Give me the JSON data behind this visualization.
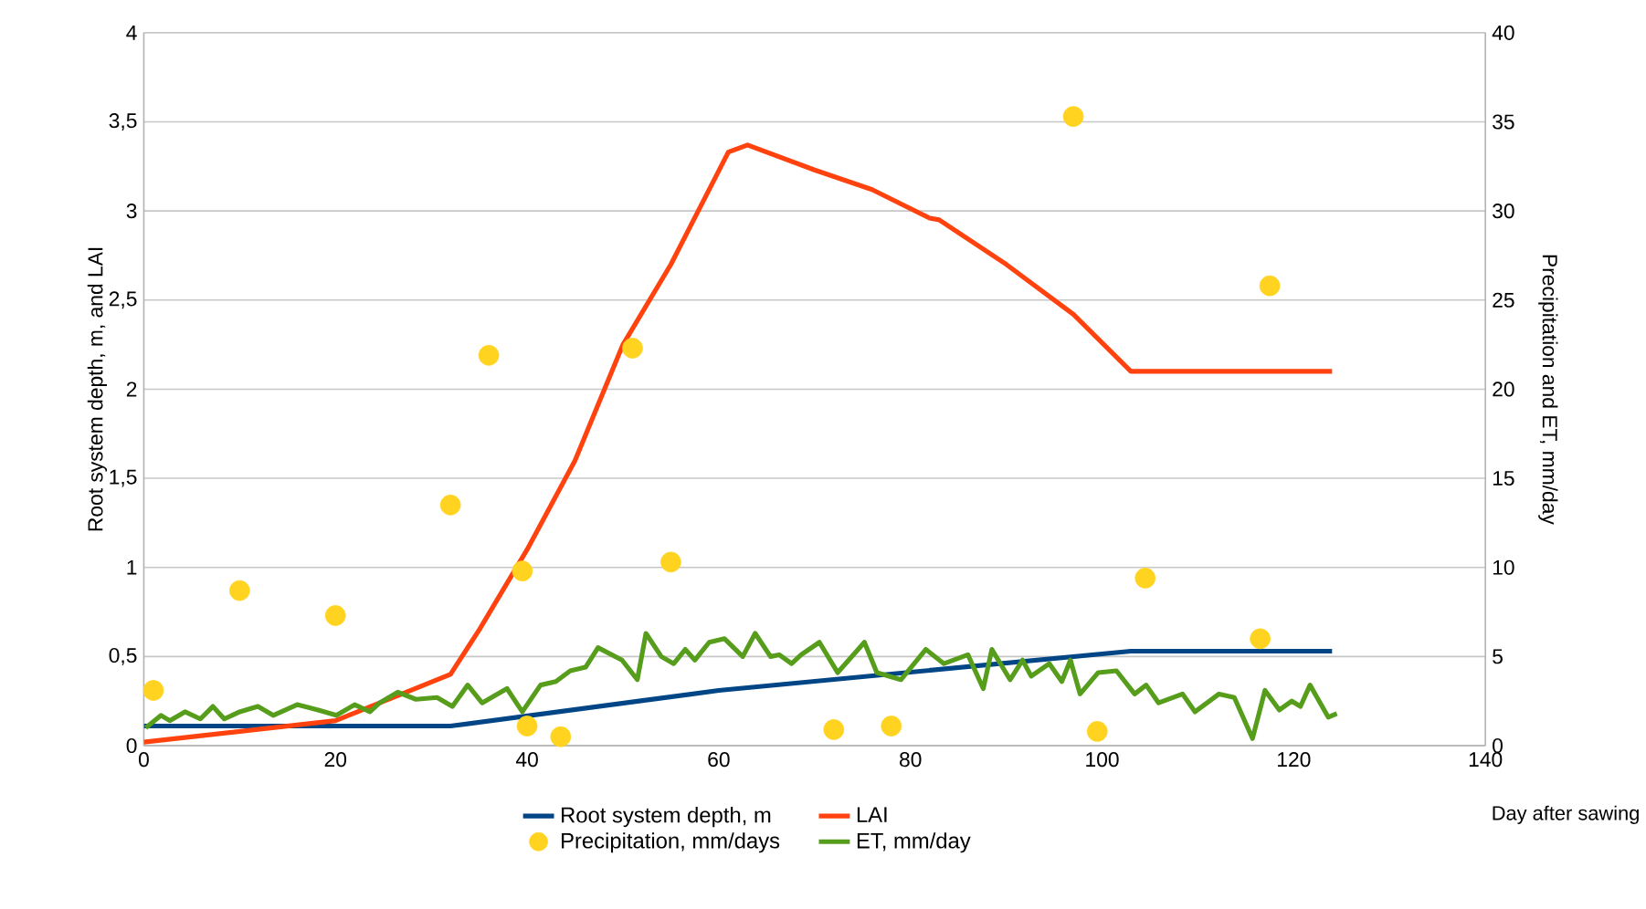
{
  "chart_data": {
    "type": "line",
    "xlabel": "Day after sawing",
    "ylabel": "Root system depth, m, and LAI",
    "y2label": "Precipitation and ET, mm/day",
    "xlim": [
      0,
      140
    ],
    "xticks": [
      0,
      20,
      40,
      60,
      80,
      100,
      120,
      140
    ],
    "ylim": [
      0,
      4
    ],
    "yticks": [
      {
        "value": 0,
        "label": "0"
      },
      {
        "value": 0.5,
        "label": "0,5"
      },
      {
        "value": 1,
        "label": "1"
      },
      {
        "value": 1.5,
        "label": "1,5"
      },
      {
        "value": 2,
        "label": "2"
      },
      {
        "value": 2.5,
        "label": "2,5"
      },
      {
        "value": 3,
        "label": "3"
      },
      {
        "value": 3.5,
        "label": "3,5"
      },
      {
        "value": 4,
        "label": "4"
      }
    ],
    "y2lim": [
      0,
      40
    ],
    "y2ticks": [
      0,
      5,
      10,
      15,
      20,
      25,
      30,
      35,
      40
    ],
    "grid": "y",
    "legend": "bottom",
    "series": [
      {
        "name": "Root system depth, m",
        "color": "#004586",
        "x": [
          0,
          32,
          60,
          103,
          124
        ],
        "values": [
          0.11,
          0.11,
          0.31,
          0.53,
          0.53
        ]
      },
      {
        "name": "LAI",
        "color": "#ff420e",
        "x": [
          0,
          20,
          32,
          35,
          40,
          45,
          50,
          55,
          61,
          63,
          70,
          76,
          82,
          83,
          90,
          97,
          103,
          124
        ],
        "values": [
          0.02,
          0.14,
          0.4,
          0.65,
          1.1,
          1.6,
          2.25,
          2.7,
          3.33,
          3.37,
          3.23,
          3.12,
          2.96,
          2.95,
          2.7,
          2.42,
          2.1,
          2.1
        ]
      },
      {
        "name": "Precipitation, mm/days",
        "type": "scatter",
        "axis": "y2",
        "marker": "circle",
        "color": "#ffd320",
        "x": [
          1,
          10,
          20,
          32,
          36,
          39.5,
          40,
          43.5,
          51,
          55,
          72,
          78,
          97,
          99.5,
          104.5,
          116.5,
          117.5
        ],
        "values": [
          3.1,
          8.7,
          7.3,
          13.5,
          21.9,
          9.8,
          1.1,
          0.5,
          22.3,
          10.3,
          0.9,
          1.1,
          35.3,
          0.8,
          9.4,
          6.0,
          25.8
        ]
      },
      {
        "name": "ET, mm/day",
        "axis": "y2",
        "color": "#579d1c",
        "x": [
          0.2,
          1.8,
          2.7,
          4.3,
          5.9,
          7.2,
          8.4,
          10,
          11.9,
          13.5,
          16,
          18.2,
          20.1,
          22,
          23.6,
          24.6,
          26.5,
          28.4,
          30.6,
          32.2,
          33.8,
          35.3,
          37.9,
          39.5,
          41.4,
          43,
          44.5,
          46.1,
          47.4,
          49.9,
          51.5,
          52.4,
          54,
          55.3,
          56.5,
          57.5,
          59,
          60.6,
          62.5,
          63.8,
          65.4,
          66.3,
          67.6,
          68.6,
          70.5,
          72.4,
          75.2,
          76.5,
          79,
          81.6,
          83.5,
          86,
          87.6,
          88.5,
          90.4,
          91.7,
          92.6,
          94.5,
          95.8,
          96.7,
          97.7,
          99.6,
          101.5,
          103.4,
          104.6,
          105.9,
          108.4,
          109.7,
          112.2,
          113.8,
          115.7,
          117,
          118.5,
          119.8,
          120.7,
          121.7,
          123.6,
          124.5
        ],
        "values": [
          1.0,
          1.7,
          1.4,
          1.9,
          1.5,
          2.2,
          1.5,
          1.9,
          2.2,
          1.7,
          2.3,
          2.0,
          1.7,
          2.3,
          1.9,
          2.4,
          3.0,
          2.6,
          2.7,
          2.2,
          3.4,
          2.4,
          3.2,
          1.9,
          3.4,
          3.6,
          4.2,
          4.4,
          5.5,
          4.8,
          3.7,
          6.3,
          5.0,
          4.6,
          5.4,
          4.8,
          5.8,
          6.0,
          5.0,
          6.3,
          5.0,
          5.1,
          4.6,
          5.1,
          5.8,
          4.1,
          5.8,
          4.1,
          3.7,
          5.4,
          4.6,
          5.1,
          3.2,
          5.4,
          3.7,
          4.8,
          3.9,
          4.6,
          3.6,
          4.8,
          2.9,
          4.1,
          4.2,
          2.9,
          3.4,
          2.4,
          2.9,
          1.9,
          2.9,
          2.7,
          0.4,
          3.1,
          2.0,
          2.5,
          2.2,
          3.4,
          1.6,
          1.8
        ]
      }
    ]
  }
}
